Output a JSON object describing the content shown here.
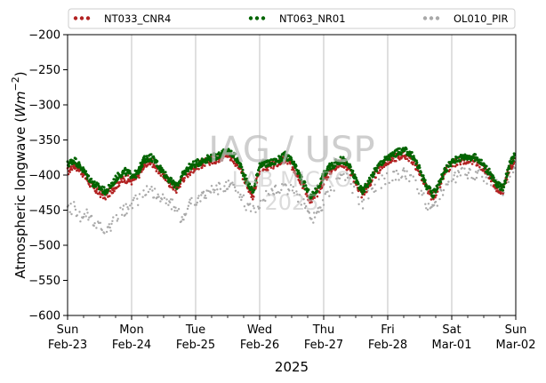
{
  "chart_data": {
    "type": "scatter",
    "xlabel": "2025",
    "ylabel_text": "Atmospheric longwave (",
    "ylabel_unit_main": "Wm",
    "ylabel_unit_exp": "−2",
    "ylabel_close": ")",
    "xlim_days": [
      0,
      7
    ],
    "ylim": [
      -600,
      -200
    ],
    "grid": "vertical-major",
    "legend_position": "top",
    "x_ticks": [
      {
        "day": "Sun",
        "date": "Feb-23"
      },
      {
        "day": "Mon",
        "date": "Feb-24"
      },
      {
        "day": "Tue",
        "date": "Feb-25"
      },
      {
        "day": "Wed",
        "date": "Feb-26"
      },
      {
        "day": "Thu",
        "date": "Feb-27"
      },
      {
        "day": "Fri",
        "date": "Feb-28"
      },
      {
        "day": "Sat",
        "date": "Mar-01"
      },
      {
        "day": "Sun",
        "date": "Mar-02"
      }
    ],
    "y_ticks": [
      "−200",
      "−250",
      "−300",
      "−350",
      "−400",
      "−450",
      "−500",
      "−550",
      "−600"
    ],
    "y_tick_values": [
      -200,
      -250,
      -300,
      -350,
      -400,
      -450,
      -500,
      -550,
      -600
    ],
    "watermark": {
      "line1": "IAG / USP",
      "line2": "LAB MICRO",
      "line3": "2025"
    },
    "series": [
      {
        "name": "NT033_CNR4",
        "color": "#b22222",
        "points": [
          [
            0.0,
            -395
          ],
          [
            0.1,
            -385
          ],
          [
            0.2,
            -392
          ],
          [
            0.3,
            -405
          ],
          [
            0.4,
            -418
          ],
          [
            0.5,
            -425
          ],
          [
            0.6,
            -430
          ],
          [
            0.7,
            -420
          ],
          [
            0.8,
            -410
          ],
          [
            0.9,
            -405
          ],
          [
            1.0,
            -408
          ],
          [
            1.1,
            -402
          ],
          [
            1.15,
            -390
          ],
          [
            1.2,
            -385
          ],
          [
            1.3,
            -380
          ],
          [
            1.4,
            -390
          ],
          [
            1.5,
            -400
          ],
          [
            1.6,
            -412
          ],
          [
            1.7,
            -420
          ],
          [
            1.8,
            -405
          ],
          [
            1.9,
            -395
          ],
          [
            2.0,
            -388
          ],
          [
            2.1,
            -384
          ],
          [
            2.2,
            -380
          ],
          [
            2.3,
            -378
          ],
          [
            2.4,
            -374
          ],
          [
            2.5,
            -370
          ],
          [
            2.6,
            -378
          ],
          [
            2.7,
            -392
          ],
          [
            2.8,
            -415
          ],
          [
            2.9,
            -430
          ],
          [
            3.0,
            -390
          ],
          [
            3.1,
            -388
          ],
          [
            3.2,
            -386
          ],
          [
            3.3,
            -382
          ],
          [
            3.4,
            -378
          ],
          [
            3.5,
            -386
          ],
          [
            3.6,
            -400
          ],
          [
            3.7,
            -418
          ],
          [
            3.8,
            -438
          ],
          [
            3.9,
            -425
          ],
          [
            4.0,
            -408
          ],
          [
            4.1,
            -394
          ],
          [
            4.2,
            -386
          ],
          [
            4.3,
            -382
          ],
          [
            4.4,
            -392
          ],
          [
            4.5,
            -410
          ],
          [
            4.6,
            -428
          ],
          [
            4.7,
            -415
          ],
          [
            4.8,
            -400
          ],
          [
            4.9,
            -388
          ],
          [
            5.0,
            -380
          ],
          [
            5.1,
            -375
          ],
          [
            5.2,
            -372
          ],
          [
            5.3,
            -372
          ],
          [
            5.4,
            -380
          ],
          [
            5.5,
            -396
          ],
          [
            5.6,
            -418
          ],
          [
            5.7,
            -432
          ],
          [
            5.8,
            -418
          ],
          [
            5.9,
            -395
          ],
          [
            6.0,
            -385
          ],
          [
            6.1,
            -380
          ],
          [
            6.2,
            -378
          ],
          [
            6.3,
            -378
          ],
          [
            6.4,
            -382
          ],
          [
            6.5,
            -390
          ],
          [
            6.6,
            -402
          ],
          [
            6.7,
            -418
          ],
          [
            6.8,
            -422
          ],
          [
            6.9,
            -392
          ],
          [
            6.98,
            -376
          ]
        ]
      },
      {
        "name": "NT063_NR01",
        "color": "#006400",
        "points": [
          [
            0.0,
            -385
          ],
          [
            0.1,
            -378
          ],
          [
            0.2,
            -388
          ],
          [
            0.3,
            -400
          ],
          [
            0.4,
            -412
          ],
          [
            0.5,
            -418
          ],
          [
            0.6,
            -424
          ],
          [
            0.7,
            -412
          ],
          [
            0.8,
            -400
          ],
          [
            0.9,
            -395
          ],
          [
            1.0,
            -400
          ],
          [
            1.1,
            -398
          ],
          [
            1.15,
            -385
          ],
          [
            1.2,
            -378
          ],
          [
            1.3,
            -374
          ],
          [
            1.4,
            -384
          ],
          [
            1.5,
            -396
          ],
          [
            1.6,
            -408
          ],
          [
            1.7,
            -416
          ],
          [
            1.8,
            -400
          ],
          [
            1.9,
            -388
          ],
          [
            2.0,
            -384
          ],
          [
            2.1,
            -380
          ],
          [
            2.2,
            -376
          ],
          [
            2.3,
            -374
          ],
          [
            2.4,
            -370
          ],
          [
            2.5,
            -366
          ],
          [
            2.6,
            -372
          ],
          [
            2.7,
            -386
          ],
          [
            2.8,
            -410
          ],
          [
            2.9,
            -424
          ],
          [
            3.0,
            -384
          ],
          [
            3.1,
            -384
          ],
          [
            3.2,
            -382
          ],
          [
            3.3,
            -378
          ],
          [
            3.4,
            -372
          ],
          [
            3.5,
            -380
          ],
          [
            3.6,
            -396
          ],
          [
            3.7,
            -414
          ],
          [
            3.8,
            -432
          ],
          [
            3.9,
            -420
          ],
          [
            4.0,
            -400
          ],
          [
            4.1,
            -388
          ],
          [
            4.2,
            -382
          ],
          [
            4.3,
            -378
          ],
          [
            4.4,
            -388
          ],
          [
            4.5,
            -406
          ],
          [
            4.6,
            -424
          ],
          [
            4.7,
            -410
          ],
          [
            4.8,
            -394
          ],
          [
            4.9,
            -382
          ],
          [
            5.0,
            -376
          ],
          [
            5.1,
            -370
          ],
          [
            5.2,
            -366
          ],
          [
            5.3,
            -366
          ],
          [
            5.4,
            -374
          ],
          [
            5.5,
            -392
          ],
          [
            5.6,
            -414
          ],
          [
            5.7,
            -428
          ],
          [
            5.8,
            -412
          ],
          [
            5.9,
            -392
          ],
          [
            6.0,
            -382
          ],
          [
            6.1,
            -376
          ],
          [
            6.2,
            -374
          ],
          [
            6.3,
            -374
          ],
          [
            6.4,
            -376
          ],
          [
            6.5,
            -386
          ],
          [
            6.6,
            -398
          ],
          [
            6.7,
            -414
          ],
          [
            6.8,
            -418
          ],
          [
            6.9,
            -386
          ],
          [
            6.98,
            -372
          ]
        ]
      },
      {
        "name": "OL010_PIR",
        "color": "#a9a9a9",
        "points": [
          [
            0.0,
            -450
          ],
          [
            0.1,
            -445
          ],
          [
            0.2,
            -460
          ],
          [
            0.3,
            -455
          ],
          [
            0.4,
            -470
          ],
          [
            0.5,
            -465
          ],
          [
            0.6,
            -480
          ],
          [
            0.7,
            -470
          ],
          [
            0.8,
            -455
          ],
          [
            0.9,
            -450
          ],
          [
            1.0,
            -442
          ],
          [
            1.1,
            -435
          ],
          [
            1.2,
            -425
          ],
          [
            1.3,
            -420
          ],
          [
            1.4,
            -430
          ],
          [
            1.5,
            -435
          ],
          [
            1.6,
            -440
          ],
          [
            1.7,
            -450
          ],
          [
            1.8,
            -465
          ],
          [
            1.9,
            -440
          ],
          [
            2.0,
            -435
          ],
          [
            2.1,
            -432
          ],
          [
            2.2,
            -425
          ],
          [
            2.3,
            -420
          ],
          [
            2.4,
            -418
          ],
          [
            2.5,
            -415
          ],
          [
            2.6,
            -420
          ],
          [
            2.7,
            -430
          ],
          [
            2.8,
            -445
          ],
          [
            2.9,
            -450
          ],
          [
            3.0,
            -440
          ],
          [
            3.1,
            -430
          ],
          [
            3.2,
            -425
          ],
          [
            3.3,
            -420
          ],
          [
            3.4,
            -418
          ],
          [
            3.5,
            -422
          ],
          [
            3.6,
            -432
          ],
          [
            3.7,
            -445
          ],
          [
            3.8,
            -465
          ],
          [
            3.9,
            -455
          ],
          [
            4.0,
            -440
          ],
          [
            4.1,
            -420
          ],
          [
            4.2,
            -410
          ],
          [
            4.3,
            -400
          ],
          [
            4.4,
            -410
          ],
          [
            4.5,
            -425
          ],
          [
            4.6,
            -440
          ],
          [
            4.7,
            -430
          ],
          [
            4.8,
            -420
          ],
          [
            4.9,
            -410
          ],
          [
            5.0,
            -405
          ],
          [
            5.1,
            -400
          ],
          [
            5.2,
            -398
          ],
          [
            5.3,
            -400
          ],
          [
            5.4,
            -408
          ],
          [
            5.5,
            -420
          ],
          [
            5.6,
            -440
          ],
          [
            5.7,
            -450
          ],
          [
            5.8,
            -430
          ],
          [
            5.9,
            -415
          ],
          [
            6.0,
            -405
          ],
          [
            6.1,
            -400
          ],
          [
            6.2,
            -398
          ],
          [
            6.3,
            -398
          ],
          [
            6.4,
            -400
          ],
          [
            6.5,
            -402
          ],
          [
            6.6,
            -405
          ],
          [
            6.7,
            -415
          ],
          [
            6.8,
            -420
          ],
          [
            6.9,
            -400
          ],
          [
            6.98,
            -390
          ]
        ]
      }
    ]
  }
}
